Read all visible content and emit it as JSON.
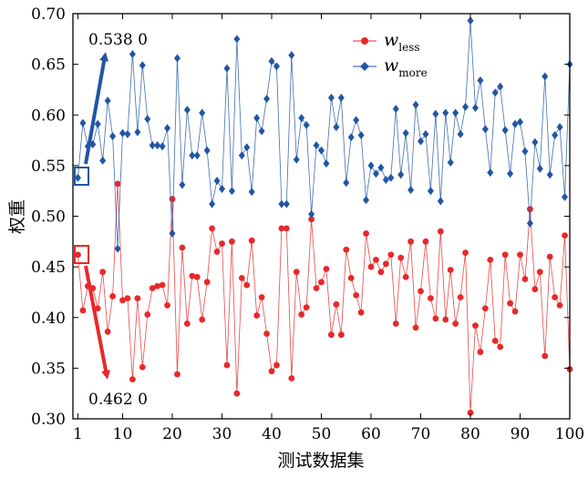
{
  "chart_data": {
    "type": "line",
    "xlabel": "测试数据集",
    "ylabel": "权重",
    "xlim": [
      0,
      100
    ],
    "ylim": [
      0.3,
      0.7
    ],
    "x_ticks": [
      1,
      10,
      20,
      30,
      40,
      50,
      60,
      70,
      80,
      90,
      100
    ],
    "y_ticks": [
      "0.30",
      "0.35",
      "0.40",
      "0.45",
      "0.50",
      "0.55",
      "0.60",
      "0.65",
      "0.70"
    ],
    "grid": false,
    "legend_position": "top-right",
    "series": [
      {
        "name": "w",
        "name_sub": "less",
        "color": "#e8282a",
        "marker": "circle",
        "x": [
          1,
          2,
          3,
          4,
          5,
          6,
          7,
          8,
          9,
          10,
          11,
          12,
          13,
          14,
          15,
          16,
          17,
          18,
          19,
          20,
          21,
          22,
          23,
          24,
          25,
          26,
          27,
          28,
          29,
          30,
          31,
          32,
          33,
          34,
          35,
          36,
          37,
          38,
          39,
          40,
          41,
          42,
          43,
          44,
          45,
          46,
          47,
          48,
          49,
          50,
          51,
          52,
          53,
          54,
          55,
          56,
          57,
          58,
          59,
          60,
          61,
          62,
          63,
          64,
          65,
          66,
          67,
          68,
          69,
          70,
          71,
          72,
          73,
          74,
          75,
          76,
          77,
          78,
          79,
          80,
          81,
          82,
          83,
          84,
          85,
          86,
          87,
          88,
          89,
          90,
          91,
          92,
          93,
          94,
          95,
          96,
          97,
          98,
          99,
          100
        ],
        "values": [
          0.462,
          0.407,
          0.431,
          0.429,
          0.409,
          0.445,
          0.386,
          0.421,
          0.532,
          0.417,
          0.419,
          0.339,
          0.419,
          0.351,
          0.403,
          0.429,
          0.431,
          0.432,
          0.412,
          0.517,
          0.344,
          0.469,
          0.394,
          0.441,
          0.44,
          0.398,
          0.435,
          0.488,
          0.465,
          0.473,
          0.353,
          0.475,
          0.325,
          0.439,
          0.432,
          0.476,
          0.402,
          0.42,
          0.384,
          0.347,
          0.353,
          0.488,
          0.488,
          0.34,
          0.445,
          0.403,
          0.41,
          0.497,
          0.429,
          0.435,
          0.448,
          0.383,
          0.413,
          0.383,
          0.467,
          0.439,
          0.422,
          0.405,
          0.483,
          0.45,
          0.457,
          0.445,
          0.453,
          0.462,
          0.394,
          0.459,
          0.44,
          0.475,
          0.39,
          0.426,
          0.475,
          0.419,
          0.399,
          0.485,
          0.398,
          0.447,
          0.394,
          0.42,
          0.464,
          0.306,
          0.392,
          0.366,
          0.409,
          0.457,
          0.377,
          0.371,
          0.462,
          0.414,
          0.406,
          0.462,
          0.438,
          0.507,
          0.428,
          0.445,
          0.362,
          0.46,
          0.42,
          0.412,
          0.481,
          0.349
        ]
      },
      {
        "name": "w",
        "name_sub": "more",
        "color": "#2255a4",
        "marker": "diamond",
        "x": [
          1,
          2,
          3,
          4,
          5,
          6,
          7,
          8,
          9,
          10,
          11,
          12,
          13,
          14,
          15,
          16,
          17,
          18,
          19,
          20,
          21,
          22,
          23,
          24,
          25,
          26,
          27,
          28,
          29,
          30,
          31,
          32,
          33,
          34,
          35,
          36,
          37,
          38,
          39,
          40,
          41,
          42,
          43,
          44,
          45,
          46,
          47,
          48,
          49,
          50,
          51,
          52,
          53,
          54,
          55,
          56,
          57,
          58,
          59,
          60,
          61,
          62,
          63,
          64,
          65,
          66,
          67,
          68,
          69,
          70,
          71,
          72,
          73,
          74,
          75,
          76,
          77,
          78,
          79,
          80,
          81,
          82,
          83,
          84,
          85,
          86,
          87,
          88,
          89,
          90,
          91,
          92,
          93,
          94,
          95,
          96,
          97,
          98,
          99,
          100
        ],
        "values": [
          0.538,
          0.592,
          0.569,
          0.571,
          0.591,
          0.555,
          0.614,
          0.579,
          0.468,
          0.582,
          0.581,
          0.66,
          0.583,
          0.649,
          0.596,
          0.57,
          0.57,
          0.569,
          0.587,
          0.483,
          0.656,
          0.531,
          0.605,
          0.56,
          0.56,
          0.602,
          0.565,
          0.512,
          0.535,
          0.527,
          0.646,
          0.525,
          0.675,
          0.56,
          0.568,
          0.524,
          0.597,
          0.584,
          0.616,
          0.653,
          0.648,
          0.512,
          0.512,
          0.659,
          0.556,
          0.597,
          0.59,
          0.502,
          0.57,
          0.565,
          0.552,
          0.617,
          0.588,
          0.617,
          0.533,
          0.578,
          0.595,
          0.58,
          0.516,
          0.55,
          0.542,
          0.548,
          0.536,
          0.538,
          0.606,
          0.541,
          0.582,
          0.526,
          0.61,
          0.574,
          0.581,
          0.525,
          0.601,
          0.515,
          0.602,
          0.553,
          0.602,
          0.581,
          0.608,
          0.693,
          0.607,
          0.634,
          0.586,
          0.543,
          0.622,
          0.628,
          0.585,
          0.542,
          0.591,
          0.593,
          0.564,
          0.493,
          0.573,
          0.547,
          0.638,
          0.541,
          0.58,
          0.588,
          0.519,
          0.65
        ]
      }
    ],
    "annotations": [
      "0.538 0",
      "0.462 0"
    ]
  }
}
